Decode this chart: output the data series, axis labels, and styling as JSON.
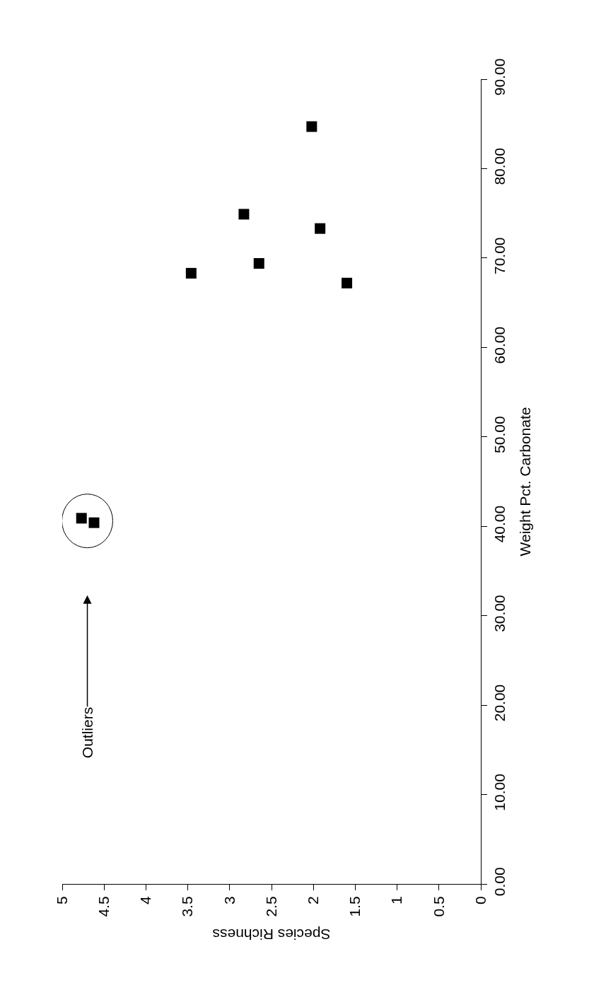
{
  "chart_data": {
    "type": "scatter",
    "xlabel": "Species Richness",
    "ylabel": "Weight Pct. Carbonate",
    "x": [
      4.77,
      4.62,
      3.46,
      2.83,
      2.65,
      2.02,
      1.92,
      1.6
    ],
    "values": [
      40.9,
      40.4,
      68.3,
      74.9,
      69.4,
      84.7,
      73.3,
      67.2
    ],
    "color": "#000000",
    "marker": "square",
    "xlim": [
      5,
      0
    ],
    "xticks": [
      5,
      4.5,
      4,
      3.5,
      3,
      2.5,
      2,
      1.5,
      1,
      0.5,
      0
    ],
    "ylim": [
      0,
      90
    ],
    "yticks": [
      {
        "value": 0,
        "label": "0.00"
      },
      {
        "value": 10,
        "label": "10.00"
      },
      {
        "value": 20,
        "label": "20.00"
      },
      {
        "value": 30,
        "label": "30.00"
      },
      {
        "value": 40,
        "label": "40.00"
      },
      {
        "value": 50,
        "label": "50.00"
      },
      {
        "value": 60,
        "label": "60.00"
      },
      {
        "value": 70,
        "label": "70.00"
      },
      {
        "value": 80,
        "label": "80.00"
      },
      {
        "value": 90,
        "label": "90.00"
      }
    ],
    "annotations": [
      {
        "text": "Outliers",
        "x": 4.7,
        "y": 40.6
      }
    ]
  }
}
